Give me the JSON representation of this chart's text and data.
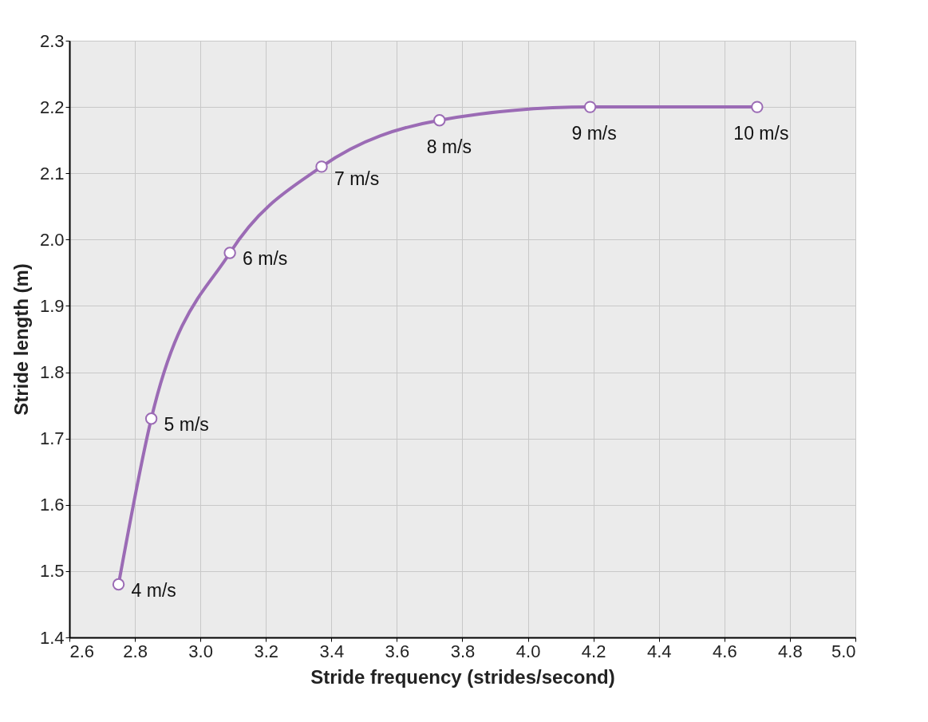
{
  "chart_data": {
    "type": "line",
    "xlabel": "Stride frequency (strides/second)",
    "ylabel": "Stride length (m)",
    "x": [
      2.75,
      2.85,
      3.09,
      3.37,
      3.73,
      4.19,
      4.7
    ],
    "series": [
      {
        "color": "#9b6bb5",
        "values": [
          1.48,
          1.73,
          1.98,
          2.11,
          2.18,
          2.2,
          2.2
        ]
      }
    ],
    "marker": "circle",
    "grid": true,
    "xlim": [
      2.6,
      5.0
    ],
    "xticks": [
      2.6,
      2.8,
      {
        "value": 3,
        "label": "3.0"
      },
      3.2,
      3.4,
      3.6,
      3.8,
      {
        "value": 4,
        "label": "4.0"
      },
      4.2,
      4.4,
      4.6,
      4.8,
      {
        "value": 5,
        "label": "5.0"
      }
    ],
    "ylim": [
      1.4,
      2.3
    ],
    "yticks": [
      1.4,
      1.5,
      1.6,
      1.7,
      1.8,
      1.9,
      {
        "value": 2,
        "label": "2.0"
      },
      2.1,
      2.2,
      2.3
    ],
    "annotations": [
      {
        "text": "4 m/s",
        "x": 2.75,
        "y": 1.48
      },
      {
        "text": "5 m/s",
        "x": 2.85,
        "y": 1.73
      },
      {
        "text": "6 m/s",
        "x": 3.09,
        "y": 1.98
      },
      {
        "text": "7 m/s",
        "x": 3.37,
        "y": 2.11
      },
      {
        "text": "8 m/s",
        "x": 3.73,
        "y": 2.18
      },
      {
        "text": "9 m/s",
        "x": 4.19,
        "y": 2.2
      },
      {
        "text": "10 m/s",
        "x": 4.7,
        "y": 2.2
      }
    ]
  }
}
